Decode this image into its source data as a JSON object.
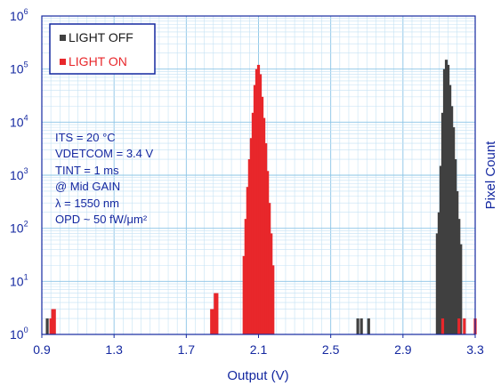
{
  "chart_data": {
    "type": "bar",
    "subtype": "histogram",
    "xlabel": "Output (V)",
    "ylabel": "Pixel Count",
    "xlim": [
      0.9,
      3.3
    ],
    "xticks": [
      "0.9",
      "1.3",
      "1.7",
      "2.1",
      "2.5",
      "2.9",
      "3.3"
    ],
    "ylim": [
      1,
      1000000
    ],
    "yscale": "log",
    "yticks": [
      {
        "base": "10",
        "exp": "0"
      },
      {
        "base": "10",
        "exp": "1"
      },
      {
        "base": "10",
        "exp": "2"
      },
      {
        "base": "10",
        "exp": "3"
      },
      {
        "base": "10",
        "exp": "4"
      },
      {
        "base": "10",
        "exp": "5"
      },
      {
        "base": "10",
        "exp": "6"
      }
    ],
    "grid": true,
    "legend_position": "top-left",
    "annotations": [
      "ITS = 20 °C",
      "VDETCOM = 3.4 V",
      "TINT = 1 ms",
      "@ Mid GAIN",
      "λ = 1550 nm",
      "OPD ~ 50 fW/μm²"
    ],
    "series": [
      {
        "name": "LIGHT OFF",
        "color": "#404040",
        "x": [
          0.93,
          2.65,
          2.67,
          2.71,
          3.09,
          3.1,
          3.11,
          3.12,
          3.13,
          3.14,
          3.15,
          3.16,
          3.17,
          3.18,
          3.19,
          3.2,
          3.21,
          3.22
        ],
        "values": [
          2,
          2,
          2,
          2,
          80,
          200,
          1500,
          15000,
          100000,
          150000,
          120000,
          50000,
          20000,
          8000,
          2000,
          500,
          150,
          50
        ]
      },
      {
        "name": "LIGHT ON",
        "color": "#e8272b",
        "x": [
          0.95,
          0.96,
          0.97,
          1.84,
          1.85,
          1.86,
          1.87,
          2.02,
          2.03,
          2.04,
          2.05,
          2.06,
          2.07,
          2.08,
          2.09,
          2.1,
          2.11,
          2.12,
          2.13,
          2.14,
          2.15,
          2.16,
          2.17,
          2.18,
          3.12,
          3.21,
          3.24,
          3.3
        ],
        "values": [
          2,
          3,
          3,
          3,
          3,
          6,
          6,
          30,
          150,
          600,
          2000,
          5000,
          15000,
          50000,
          100000,
          120000,
          80000,
          30000,
          12000,
          4000,
          1200,
          300,
          80,
          20,
          2,
          2,
          2,
          2
        ]
      }
    ]
  }
}
